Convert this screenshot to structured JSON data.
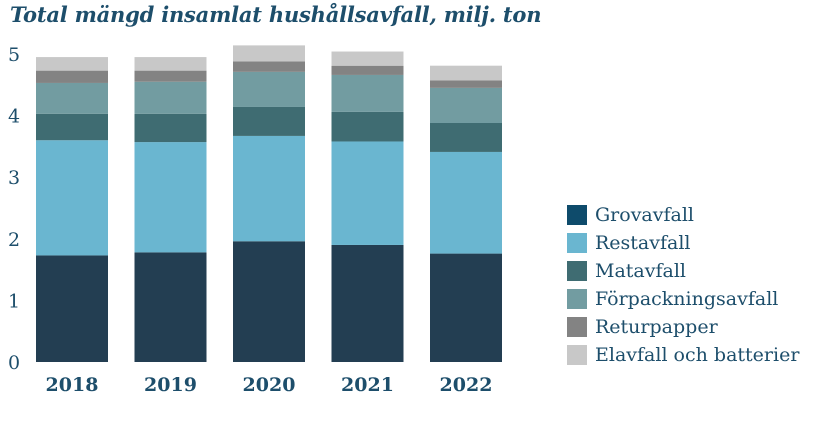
{
  "chart_data": {
    "type": "bar",
    "stacked": true,
    "title": "Total mängd insamlat hushållsavfall, milj. ton",
    "xlabel": "",
    "ylabel": "",
    "ylim": [
      0,
      5
    ],
    "yticks": [
      "0",
      "1",
      "2",
      "3",
      "4",
      "5"
    ],
    "grid": false,
    "legend": "right",
    "categories": [
      "2018",
      "2019",
      "2020",
      "2021",
      "2022"
    ],
    "series": [
      {
        "name": "Grovavfall",
        "color": "#233e52",
        "swatch_color": "#0e4b6b",
        "values": [
          1.73,
          1.78,
          1.96,
          1.9,
          1.76
        ]
      },
      {
        "name": "Restavfall",
        "color": "#6ab6d0",
        "values": [
          1.87,
          1.79,
          1.71,
          1.68,
          1.65
        ]
      },
      {
        "name": "Matavfall",
        "color": "#3f6c72",
        "values": [
          0.43,
          0.46,
          0.47,
          0.48,
          0.47
        ]
      },
      {
        "name": "Förpackningsavfall",
        "color": "#729ca1",
        "values": [
          0.5,
          0.52,
          0.57,
          0.6,
          0.57
        ]
      },
      {
        "name": "Returpapper",
        "color": "#838383",
        "values": [
          0.2,
          0.18,
          0.17,
          0.15,
          0.12
        ]
      },
      {
        "name": "Elavfall och batterier",
        "color": "#c8c8c8",
        "values": [
          0.22,
          0.22,
          0.26,
          0.23,
          0.24
        ]
      }
    ]
  }
}
